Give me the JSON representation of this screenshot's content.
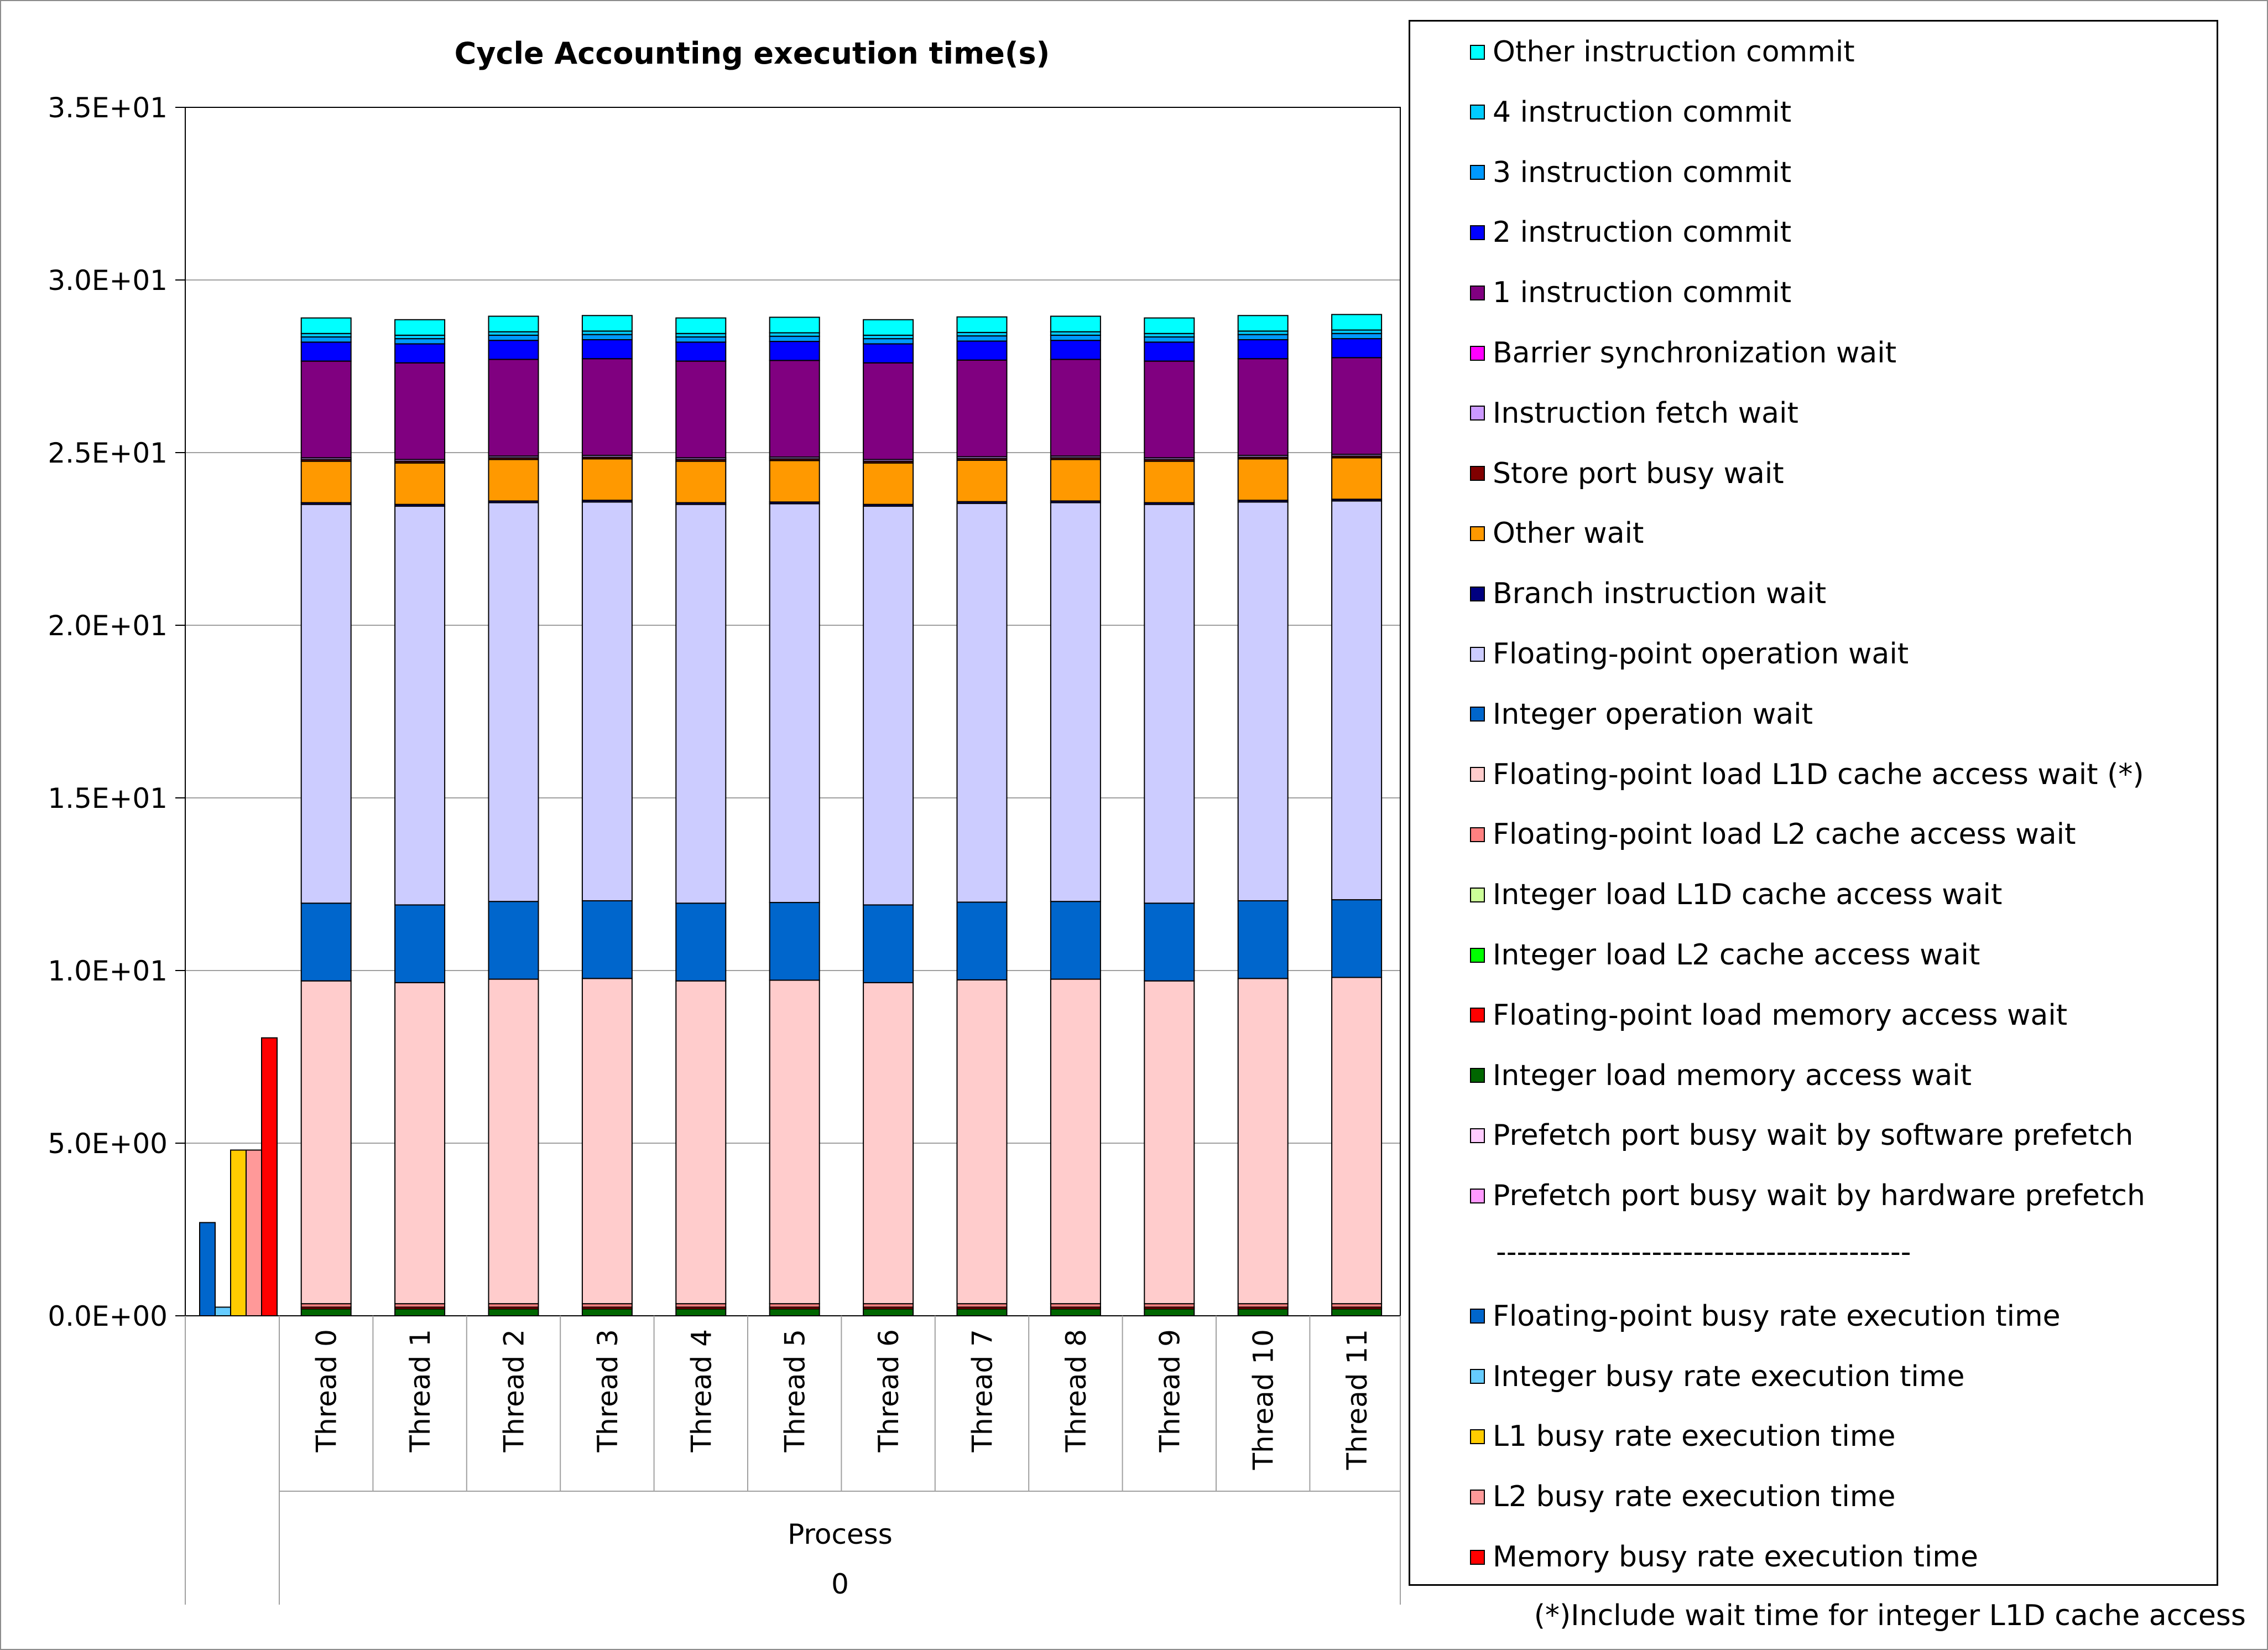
{
  "chart_data": {
    "type": "bar",
    "title": "Cycle Accounting execution time(s)",
    "ylim": [
      0,
      35
    ],
    "y_ticks": [
      "0.0E+00",
      "5.0E+00",
      "1.0E+01",
      "1.5E+01",
      "2.0E+01",
      "2.5E+01",
      "3.0E+01",
      "3.5E+01"
    ],
    "y_tick_values": [
      0,
      5,
      10,
      15,
      20,
      25,
      30,
      35
    ],
    "grid": true,
    "legend_position": "right",
    "group_label": "Process",
    "group_value": "0",
    "categories": [
      "Thread 0",
      "Thread 1",
      "Thread 2",
      "Thread 3",
      "Thread 4",
      "Thread 5",
      "Thread 6",
      "Thread 7",
      "Thread 8",
      "Thread 9",
      "Thread 10",
      "Thread 11"
    ],
    "stacked_series": [
      {
        "name": "Prefetch port busy wait by hardware prefetch",
        "color": "#ff99ff",
        "values": [
          0,
          0,
          0,
          0,
          0,
          0,
          0,
          0,
          0,
          0,
          0,
          0
        ]
      },
      {
        "name": "Prefetch port busy wait by software prefetch",
        "color": "#ffccff",
        "values": [
          0,
          0,
          0,
          0,
          0,
          0,
          0,
          0,
          0,
          0,
          0,
          0
        ]
      },
      {
        "name": "Integer load memory access wait",
        "color": "#006600",
        "values": [
          0.2,
          0.2,
          0.2,
          0.2,
          0.2,
          0.2,
          0.2,
          0.2,
          0.2,
          0.2,
          0.2,
          0.2
        ]
      },
      {
        "name": "Floating-point load memory access wait",
        "color": "#ff0000",
        "values": [
          0.05,
          0.05,
          0.05,
          0.05,
          0.05,
          0.05,
          0.05,
          0.05,
          0.05,
          0.05,
          0.05,
          0.05
        ]
      },
      {
        "name": "Integer load L2 cache access wait",
        "color": "#00ff00",
        "values": [
          0,
          0,
          0,
          0,
          0,
          0,
          0,
          0,
          0,
          0,
          0,
          0
        ]
      },
      {
        "name": "Integer load L1D cache access wait",
        "color": "#ccff99",
        "values": [
          0,
          0,
          0,
          0,
          0,
          0,
          0,
          0,
          0,
          0,
          0,
          0
        ]
      },
      {
        "name": "Floating-point load L2 cache access wait",
        "color": "#ff8080",
        "values": [
          0.1,
          0.1,
          0.1,
          0.1,
          0.1,
          0.1,
          0.1,
          0.1,
          0.1,
          0.1,
          0.1,
          0.1
        ]
      },
      {
        "name": "Floating-point load L1D cache access wait (*)",
        "color": "#ffcccc",
        "values": [
          9.35,
          9.3,
          9.4,
          9.42,
          9.35,
          9.37,
          9.3,
          9.38,
          9.4,
          9.35,
          9.42,
          9.45
        ]
      },
      {
        "name": "Integer operation wait",
        "color": "#0066cc",
        "values": [
          2.25,
          2.25,
          2.25,
          2.25,
          2.25,
          2.25,
          2.25,
          2.25,
          2.25,
          2.25,
          2.25,
          2.25
        ]
      },
      {
        "name": "Floating-point operation wait",
        "color": "#ccccff",
        "values": [
          11.55,
          11.55,
          11.55,
          11.55,
          11.55,
          11.55,
          11.55,
          11.55,
          11.55,
          11.55,
          11.55,
          11.55
        ]
      },
      {
        "name": "Branch instruction wait",
        "color": "#000080",
        "values": [
          0.05,
          0.05,
          0.05,
          0.05,
          0.05,
          0.05,
          0.05,
          0.05,
          0.05,
          0.05,
          0.05,
          0.05
        ]
      },
      {
        "name": "Other wait",
        "color": "#ff9900",
        "values": [
          1.2,
          1.2,
          1.2,
          1.2,
          1.2,
          1.2,
          1.2,
          1.2,
          1.2,
          1.2,
          1.2,
          1.2
        ]
      },
      {
        "name": "Store port busy wait",
        "color": "#800000",
        "values": [
          0.05,
          0.05,
          0.05,
          0.05,
          0.05,
          0.05,
          0.05,
          0.05,
          0.05,
          0.05,
          0.05,
          0.05
        ]
      },
      {
        "name": "Instruction fetch wait",
        "color": "#cc99ff",
        "values": [
          0.05,
          0.05,
          0.05,
          0.05,
          0.05,
          0.05,
          0.05,
          0.05,
          0.05,
          0.05,
          0.05,
          0.05
        ]
      },
      {
        "name": "Barrier synchronization wait",
        "color": "#ff00ff",
        "values": [
          0,
          0,
          0,
          0,
          0,
          0,
          0,
          0,
          0,
          0,
          0,
          0
        ]
      },
      {
        "name": "1 instruction commit",
        "color": "#800080",
        "values": [
          2.8,
          2.8,
          2.8,
          2.8,
          2.8,
          2.8,
          2.8,
          2.8,
          2.8,
          2.8,
          2.8,
          2.8
        ]
      },
      {
        "name": "2 instruction commit",
        "color": "#0000ff",
        "values": [
          0.55,
          0.55,
          0.55,
          0.55,
          0.55,
          0.55,
          0.55,
          0.55,
          0.55,
          0.55,
          0.55,
          0.55
        ]
      },
      {
        "name": "3 instruction commit",
        "color": "#0099ff",
        "values": [
          0.15,
          0.15,
          0.15,
          0.15,
          0.15,
          0.15,
          0.15,
          0.15,
          0.15,
          0.15,
          0.15,
          0.15
        ]
      },
      {
        "name": "4 instruction commit",
        "color": "#00ccff",
        "values": [
          0.1,
          0.1,
          0.1,
          0.1,
          0.1,
          0.1,
          0.1,
          0.1,
          0.1,
          0.1,
          0.1,
          0.1
        ]
      },
      {
        "name": "Other instruction commit",
        "color": "#00ffff",
        "values": [
          0.45,
          0.45,
          0.45,
          0.45,
          0.45,
          0.45,
          0.45,
          0.45,
          0.45,
          0.45,
          0.45,
          0.45
        ]
      }
    ],
    "busy_rate_series": [
      {
        "name": "Floating-point busy rate execution time",
        "color": "#0066cc",
        "value": 2.7
      },
      {
        "name": "Integer busy rate execution time",
        "color": "#66ccff",
        "value": 0.25
      },
      {
        "name": "L1 busy rate execution time",
        "color": "#ffcc00",
        "value": 4.8
      },
      {
        "name": "L2 busy rate execution time",
        "color": "#ff9999",
        "value": 4.8
      },
      {
        "name": "Memory busy rate execution time",
        "color": "#ff0000",
        "value": 8.05
      }
    ],
    "legend_separator": "----------------------------------------",
    "footnote": "(*)Include wait time for integer L1D cache access"
  }
}
